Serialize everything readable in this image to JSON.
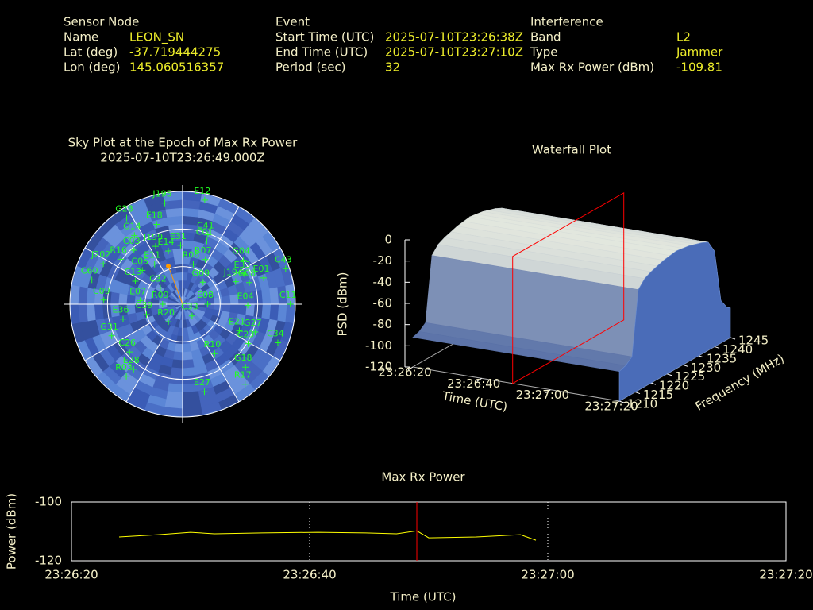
{
  "header": {
    "sensor": {
      "title": "Sensor Node",
      "rows": [
        {
          "label": "Name",
          "value": "LEON_SN"
        },
        {
          "label": "Lat (deg)",
          "value": -37.719444275
        },
        {
          "label": "Lon (deg)",
          "value": 145.060516357
        }
      ]
    },
    "event": {
      "title": "Event",
      "rows": [
        {
          "label": "Start Time (UTC)",
          "value": "2025-07-10T23:26:38Z"
        },
        {
          "label": "End Time (UTC)",
          "value": "2025-07-10T23:27:10Z"
        },
        {
          "label": "Period (sec)",
          "value": 32
        }
      ]
    },
    "interference": {
      "title": "Interference",
      "rows": [
        {
          "label": "Band",
          "value": "L2"
        },
        {
          "label": "Type",
          "value": "Jammer"
        },
        {
          "label": "Max Rx Power (dBm)",
          "value": -109.81
        }
      ]
    }
  },
  "chart_data": [
    {
      "type": "skyplot",
      "title": "Sky Plot at the Epoch of Max Rx Power",
      "subtitle": "2025-07-10T23:26:49.000Z",
      "labels": [
        "J195",
        "E12",
        "G28",
        "E18",
        "G14",
        "C41",
        "C01",
        "R07",
        "G04",
        "C43",
        "E33",
        "E01",
        "J194",
        "G08",
        "C11",
        "E04",
        "G27",
        "E21",
        "C23",
        "C34",
        "R10",
        "G18",
        "R17",
        "E27",
        "C33",
        "E08",
        "G09",
        "R06",
        "C32",
        "R09",
        "R20",
        "C09",
        "C13",
        "C05",
        "E11",
        "R16",
        "J202",
        "C60",
        "E07",
        "C39",
        "E36",
        "G31",
        "C26",
        "E28",
        "R03",
        "C03",
        "E14",
        "E31",
        "J199"
      ],
      "azimuth": [
        350,
        12,
        327,
        342,
        325,
        20,
        21,
        27,
        54,
        71,
        64,
        72,
        67,
        72,
        90,
        91,
        111,
        115,
        121,
        112,
        147,
        135,
        142,
        166,
        141,
        90,
        43,
        15,
        306,
        270,
        219,
        273,
        296,
        310,
        325,
        306,
        297,
        285,
        275,
        254,
        256,
        246,
        228,
        217,
        218,
        318,
        345,
        358,
        335
      ],
      "elevation": [
        8,
        5,
        8,
        23,
        23,
        31,
        36,
        50,
        30,
        3,
        35,
        22,
        44,
        34,
        4,
        38,
        28,
        40,
        29,
        8,
        43,
        19,
        9,
        18,
        78,
        70,
        66,
        57,
        68,
        74,
        72,
        27,
        48,
        48,
        51,
        29,
        19,
        15,
        56,
        60,
        41,
        28,
        33,
        25,
        17,
        32,
        46,
        43,
        39
      ],
      "color": "#22ff22",
      "rlim": [
        90,
        0
      ],
      "rticks": [
        0,
        30,
        60
      ]
    },
    {
      "type": "waterfall",
      "title": "Waterfall Plot",
      "xlabel": "Time (UTC)",
      "ylabel": "Frequency (MHz)",
      "zlabel": "PSD (dBm)",
      "xlim": [
        84380,
        84440
      ],
      "xticks": [
        {
          "value": 84380,
          "label": "23:26:20"
        },
        {
          "value": 84400,
          "label": "23:26:40"
        },
        {
          "value": 84420,
          "label": "23:27:00"
        },
        {
          "value": 84440,
          "label": "23:27:20"
        }
      ],
      "ylim": [
        1210,
        1245
      ],
      "yticks": [
        1210,
        1215,
        1220,
        1225,
        1230,
        1235,
        1240,
        1245
      ],
      "zlim": [
        -120,
        0
      ],
      "zticks": [
        -120,
        -100,
        -80,
        -60,
        -40,
        -20,
        0
      ],
      "frequency": [
        1210,
        1212,
        1214,
        1216,
        1218,
        1220,
        1222,
        1224,
        1226,
        1228,
        1230,
        1232,
        1234,
        1236,
        1238,
        1240,
        1242,
        1244,
        1245
      ],
      "psd": [
        -92,
        -90,
        -85,
        -25,
        -18,
        -15,
        -13,
        -11,
        -10,
        -9,
        -10,
        -11,
        -13,
        -15,
        -18,
        -30,
        -80,
        -90,
        -92
      ],
      "marker_x": 84409,
      "marker_color": "#ff0000"
    },
    {
      "type": "line",
      "title": "Max Rx Power",
      "xlabel": "Time (UTC)",
      "ylabel": "Power (dBm)",
      "x": [
        84384,
        84387.3,
        84390,
        84392,
        84396,
        84400.7,
        84404.7,
        84407.3,
        84409,
        84410,
        84414,
        84417.7,
        84419
      ],
      "values": [
        -111.9,
        -111.1,
        -110.3,
        -110.8,
        -110.5,
        -110.3,
        -110.5,
        -110.8,
        -109.81,
        -112.2,
        -111.9,
        -111.1,
        -113.0
      ],
      "color": "#ffff00",
      "xlim": [
        84380,
        84440
      ],
      "xticks": [
        {
          "value": 84380,
          "label": "23:26:20"
        },
        {
          "value": 84400,
          "label": "23:26:40"
        },
        {
          "value": 84420,
          "label": "23:27:00"
        },
        {
          "value": 84440,
          "label": "23:27:20"
        }
      ],
      "ylim": [
        -120,
        -100
      ],
      "yticks": [
        -120,
        -100
      ],
      "grid": true,
      "marker_x": 84409,
      "marker_color": "#ff0000"
    }
  ]
}
